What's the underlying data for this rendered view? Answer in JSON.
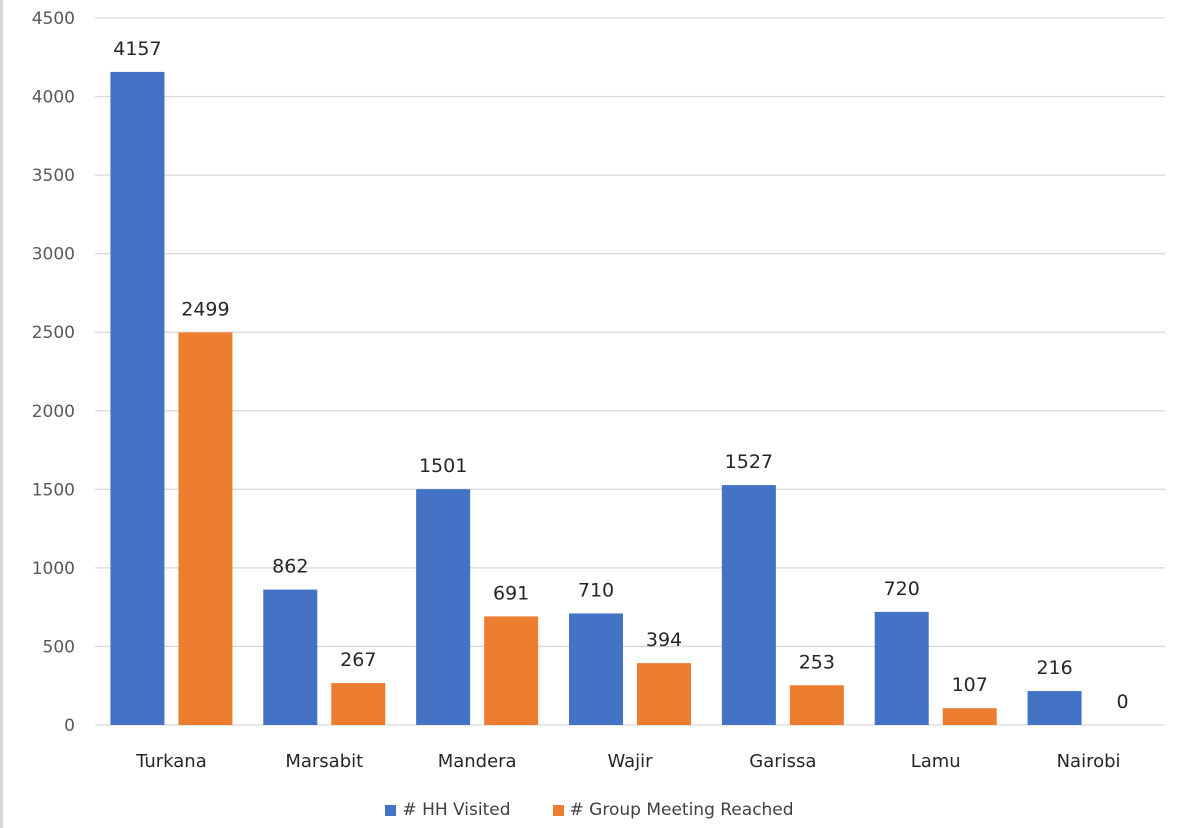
{
  "chart_data": {
    "type": "bar",
    "title": "",
    "xlabel": "",
    "ylabel": "",
    "categories": [
      "Turkana",
      "Marsabit",
      "Mandera",
      "Wajir",
      "Garissa",
      "Lamu",
      "Nairobi"
    ],
    "series": [
      {
        "name": "# HH Visited",
        "color": "#4472C4",
        "values": [
          4157,
          862,
          1501,
          710,
          1527,
          720,
          216
        ]
      },
      {
        "name": "# Group Meeting Reached",
        "color": "#ED7D31",
        "values": [
          2499,
          267,
          691,
          394,
          253,
          107,
          0
        ]
      }
    ],
    "ylim": [
      0,
      4500
    ],
    "yticks": [
      0,
      500,
      1000,
      1500,
      2000,
      2500,
      3000,
      3500,
      4000,
      4500
    ],
    "grid": true,
    "gridline_color": "#d9d9d9",
    "legend_position": "bottom",
    "data_labels": true
  }
}
